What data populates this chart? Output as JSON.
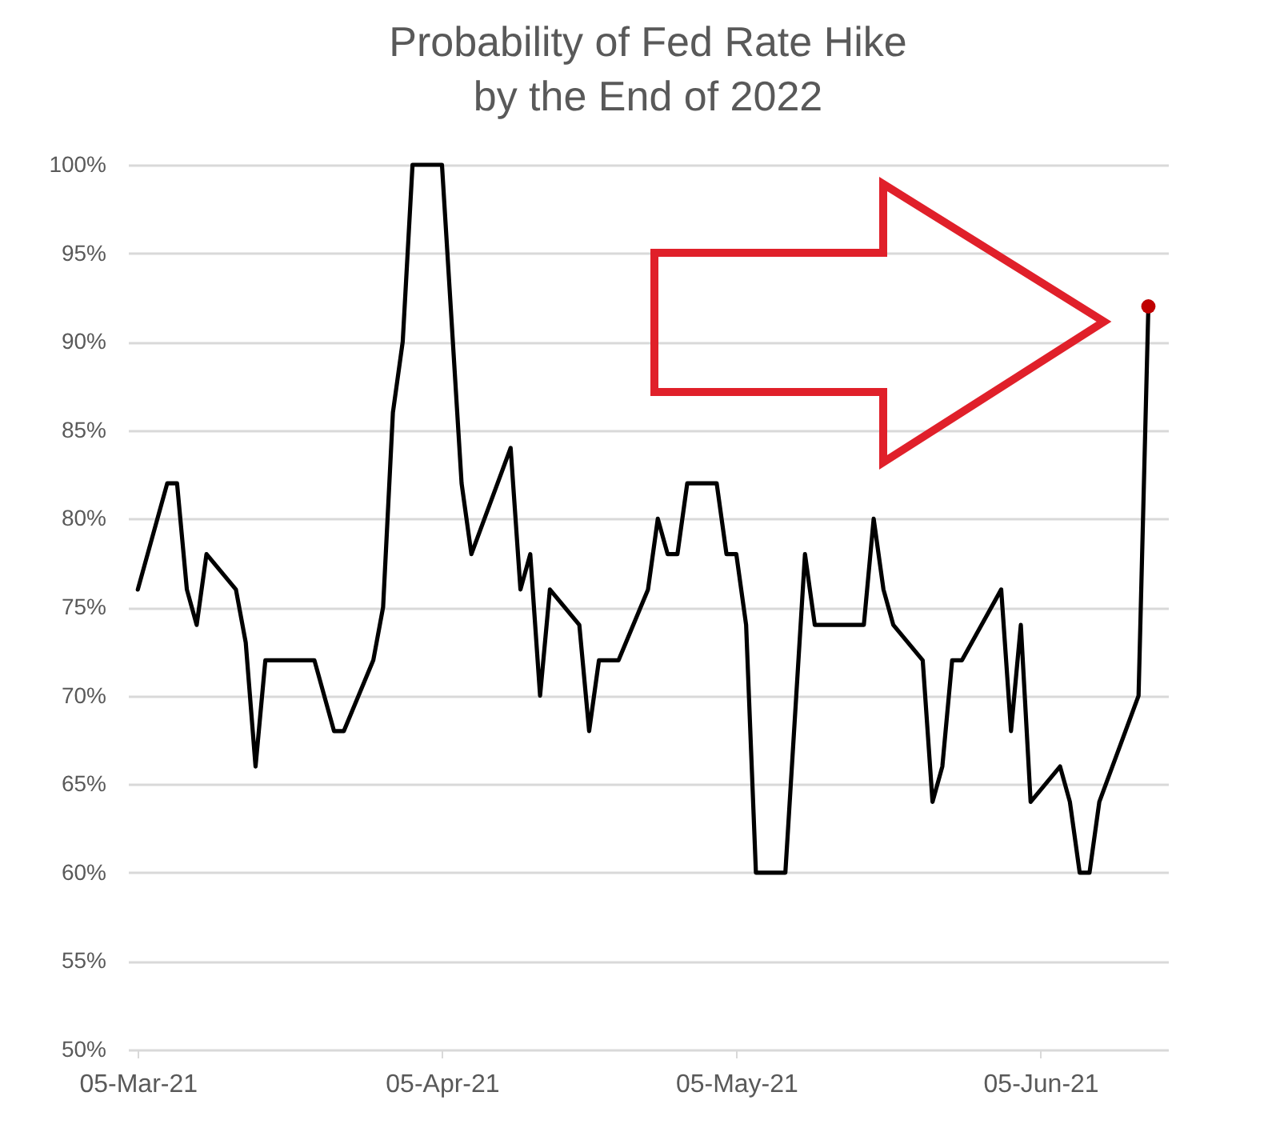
{
  "chart_data": {
    "type": "line",
    "title": "Probability of Fed Rate Hike\nby the End of 2022",
    "xlim": [
      "2021-03-04",
      "2021-06-18"
    ],
    "xticks": [
      {
        "value": "2021-03-05",
        "label": "05-Mar-21"
      },
      {
        "value": "2021-04-05",
        "label": "05-Apr-21"
      },
      {
        "value": "2021-05-05",
        "label": "05-May-21"
      },
      {
        "value": "2021-06-05",
        "label": "05-Jun-21"
      }
    ],
    "ylim": [
      50,
      100
    ],
    "yticks": [
      {
        "value": 50,
        "label": "50%"
      },
      {
        "value": 55,
        "label": "55%"
      },
      {
        "value": 60,
        "label": "60%"
      },
      {
        "value": 65,
        "label": "65%"
      },
      {
        "value": 70,
        "label": "70%"
      },
      {
        "value": 75,
        "label": "75%"
      },
      {
        "value": 80,
        "label": "80%"
      },
      {
        "value": 85,
        "label": "85%"
      },
      {
        "value": 90,
        "label": "90%"
      },
      {
        "value": 95,
        "label": "95%"
      },
      {
        "value": 100,
        "label": "100%"
      }
    ],
    "grid": "y",
    "legend": false,
    "line_style": "solid",
    "marker": "none",
    "series": [
      {
        "color": "#000000",
        "x": [
          "2021-03-05",
          "2021-03-08",
          "2021-03-09",
          "2021-03-10",
          "2021-03-11",
          "2021-03-12",
          "2021-03-15",
          "2021-03-16",
          "2021-03-17",
          "2021-03-18",
          "2021-03-23",
          "2021-03-25",
          "2021-03-26",
          "2021-03-29",
          "2021-03-30",
          "2021-03-31",
          "2021-04-01",
          "2021-04-02",
          "2021-04-05",
          "2021-04-07",
          "2021-04-08",
          "2021-04-12",
          "2021-04-13",
          "2021-04-14",
          "2021-04-15",
          "2021-04-16",
          "2021-04-19",
          "2021-04-20",
          "2021-04-21",
          "2021-04-23",
          "2021-04-26",
          "2021-04-27",
          "2021-04-28",
          "2021-04-29",
          "2021-04-30",
          "2021-05-03",
          "2021-05-04",
          "2021-05-05",
          "2021-05-06",
          "2021-05-07",
          "2021-05-10",
          "2021-05-12",
          "2021-05-13",
          "2021-05-18",
          "2021-05-19",
          "2021-05-20",
          "2021-05-21",
          "2021-05-24",
          "2021-05-25",
          "2021-05-26",
          "2021-05-27",
          "2021-05-28",
          "2021-06-01",
          "2021-06-02",
          "2021-06-03",
          "2021-06-04",
          "2021-06-07",
          "2021-06-08",
          "2021-06-09",
          "2021-06-10",
          "2021-06-11",
          "2021-06-15",
          "2021-06-16"
        ],
        "values": [
          76,
          82,
          82,
          76,
          74,
          78,
          76,
          73,
          66,
          72,
          72,
          68,
          68,
          72,
          75,
          86,
          90,
          100,
          100,
          82,
          78,
          84,
          76,
          78,
          70,
          76,
          74,
          68,
          72,
          72,
          76,
          80,
          78,
          78,
          82,
          82,
          78,
          78,
          74,
          60,
          60,
          78,
          74,
          74,
          80,
          76,
          74,
          72,
          64,
          66,
          72,
          72,
          76,
          68,
          74,
          64,
          66,
          64,
          60,
          60,
          64,
          70,
          92
        ]
      },
      {
        "type": "scatter",
        "color": "#c00000",
        "marker": "circle",
        "x": [
          "2021-06-16"
        ],
        "values": [
          92
        ]
      }
    ]
  }
}
